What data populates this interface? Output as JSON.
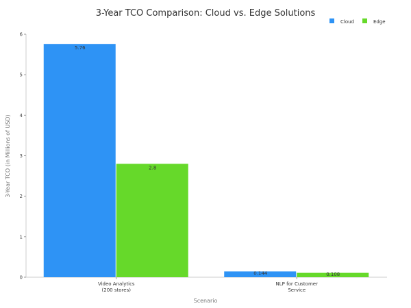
{
  "chart_data": {
    "type": "bar",
    "title": "3-Year TCO Comparison: Cloud vs. Edge Solutions",
    "xlabel": "Scenario",
    "ylabel": "3-Year TCO (in Millions of USD)",
    "categories": [
      [
        "Video Analytics",
        "(200 stores)"
      ],
      [
        "NLP for Customer",
        "Service"
      ]
    ],
    "series": [
      {
        "name": "Cloud",
        "values": [
          5.76,
          0.144
        ],
        "color": "#2e93f5",
        "labels": [
          "5.76",
          "0.144"
        ]
      },
      {
        "name": "Edge",
        "values": [
          2.8,
          0.108
        ],
        "color": "#66d92a",
        "labels": [
          "2.8",
          "0.108"
        ]
      }
    ],
    "ylim": [
      0,
      6
    ],
    "yticks": [
      0,
      1,
      2,
      3,
      4,
      5,
      6
    ],
    "legend_position": "top-right",
    "grid": false
  }
}
